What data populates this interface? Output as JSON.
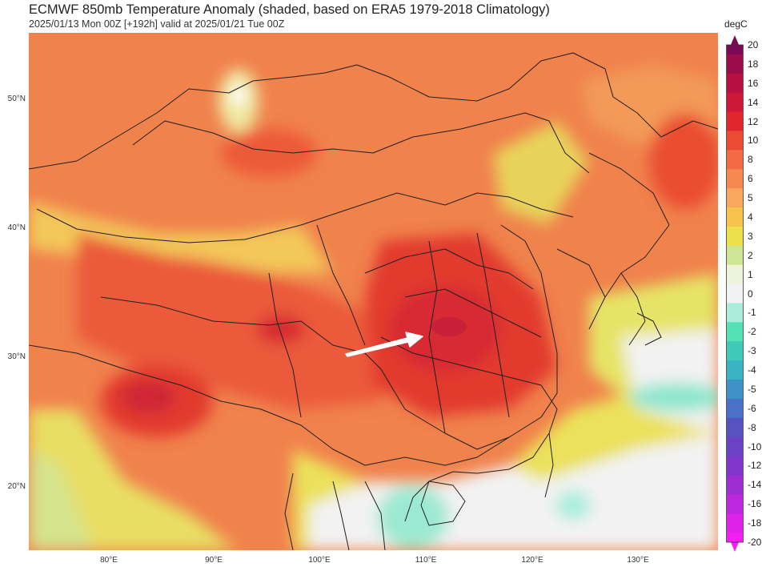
{
  "title": "ECMWF 850mb Temperature Anomaly (shaded, based on ERA5 1979-2018 Climatology)",
  "subtitle": "2025/01/13 Mon 00Z [+192h] valid at 2025/01/21 Tue 00Z",
  "latitude_labels": [
    "50°N",
    "40°N",
    "30°N",
    "20°N"
  ],
  "longitude_labels": [
    "80°E",
    "90°E",
    "100°E",
    "110°E",
    "120°E",
    "130°E"
  ],
  "colorbar": {
    "unit": "degC",
    "labels": [
      "20",
      "18",
      "16",
      "14",
      "12",
      "10",
      "8",
      "6",
      "5",
      "4",
      "3",
      "2",
      "1",
      "0",
      "-1",
      "-2",
      "-3",
      "-4",
      "-5",
      "-6",
      "-8",
      "-10",
      "-12",
      "-14",
      "-16",
      "-18",
      "-20"
    ],
    "colors": [
      "#7a0a55",
      "#9a0c4a",
      "#b5103f",
      "#cc1736",
      "#e0272d",
      "#ec4b33",
      "#f26b42",
      "#f58a51",
      "#f9a65e",
      "#f6c34c",
      "#ece14a",
      "#cfe596",
      "#eef3dc",
      "#f2f2f2",
      "#a8eedb",
      "#55e0b5",
      "#3fcab8",
      "#39b4c0",
      "#3e92c8",
      "#4b70c7",
      "#5652c0",
      "#6a42c4",
      "#8235cb",
      "#9c2ed3",
      "#bd27de",
      "#df22ea",
      "#f51ff4"
    ]
  },
  "colors": {
    "warm_background": "#f0824c",
    "strong_anomaly": "#e23a2f",
    "peak_anomaly": "#c81e3a",
    "moderate_anomaly": "#f9a65e",
    "weak_anomaly": "#e6e055",
    "neutral": "#f2f2f2",
    "cold_anomaly": "#9be8cf",
    "boundary": "#1f1f1f",
    "arrow": "#ffffff"
  }
}
